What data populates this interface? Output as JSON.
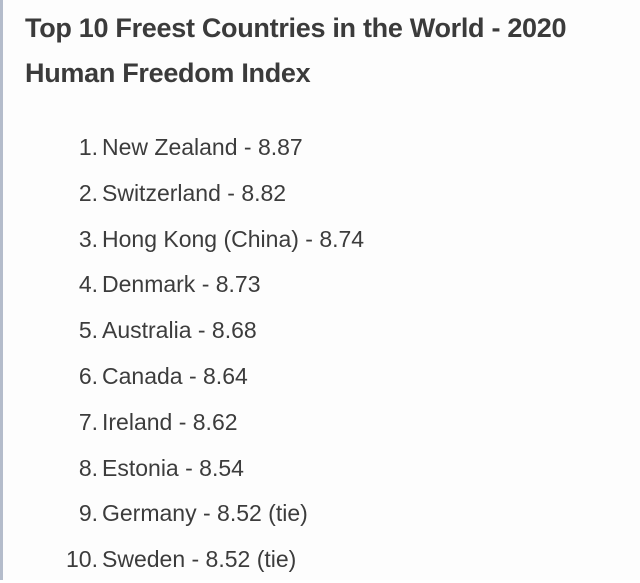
{
  "document": {
    "title": "Top 10 Freest Countries in the World - 2020 Human Freedom Index",
    "items": [
      {
        "rank": "1.",
        "text": "New Zealand - 8.87",
        "country": "New Zealand",
        "score": 8.87,
        "note": ""
      },
      {
        "rank": "2.",
        "text": "Switzerland - 8.82",
        "country": "Switzerland",
        "score": 8.82,
        "note": ""
      },
      {
        "rank": "3.",
        "text": "Hong Kong (China) - 8.74",
        "country": "Hong Kong (China)",
        "score": 8.74,
        "note": ""
      },
      {
        "rank": "4.",
        "text": "Denmark - 8.73",
        "country": "Denmark",
        "score": 8.73,
        "note": ""
      },
      {
        "rank": "5.",
        "text": "Australia - 8.68",
        "country": "Australia",
        "score": 8.68,
        "note": ""
      },
      {
        "rank": "6.",
        "text": "Canada - 8.64",
        "country": "Canada",
        "score": 8.64,
        "note": ""
      },
      {
        "rank": "7.",
        "text": "Ireland - 8.62",
        "country": "Ireland",
        "score": 8.62,
        "note": ""
      },
      {
        "rank": "8.",
        "text": "Estonia - 8.54",
        "country": "Estonia",
        "score": 8.54,
        "note": ""
      },
      {
        "rank": "9.",
        "text": "Germany - 8.52 (tie)",
        "country": "Germany",
        "score": 8.52,
        "note": "(tie)"
      },
      {
        "rank": "10.",
        "text": "Sweden - 8.52 (tie)",
        "country": "Sweden",
        "score": 8.52,
        "note": "(tie)"
      }
    ]
  },
  "colors": {
    "text": "#3b3b3b",
    "background": "#fdfdfd",
    "left_border": "#b4bccb"
  }
}
